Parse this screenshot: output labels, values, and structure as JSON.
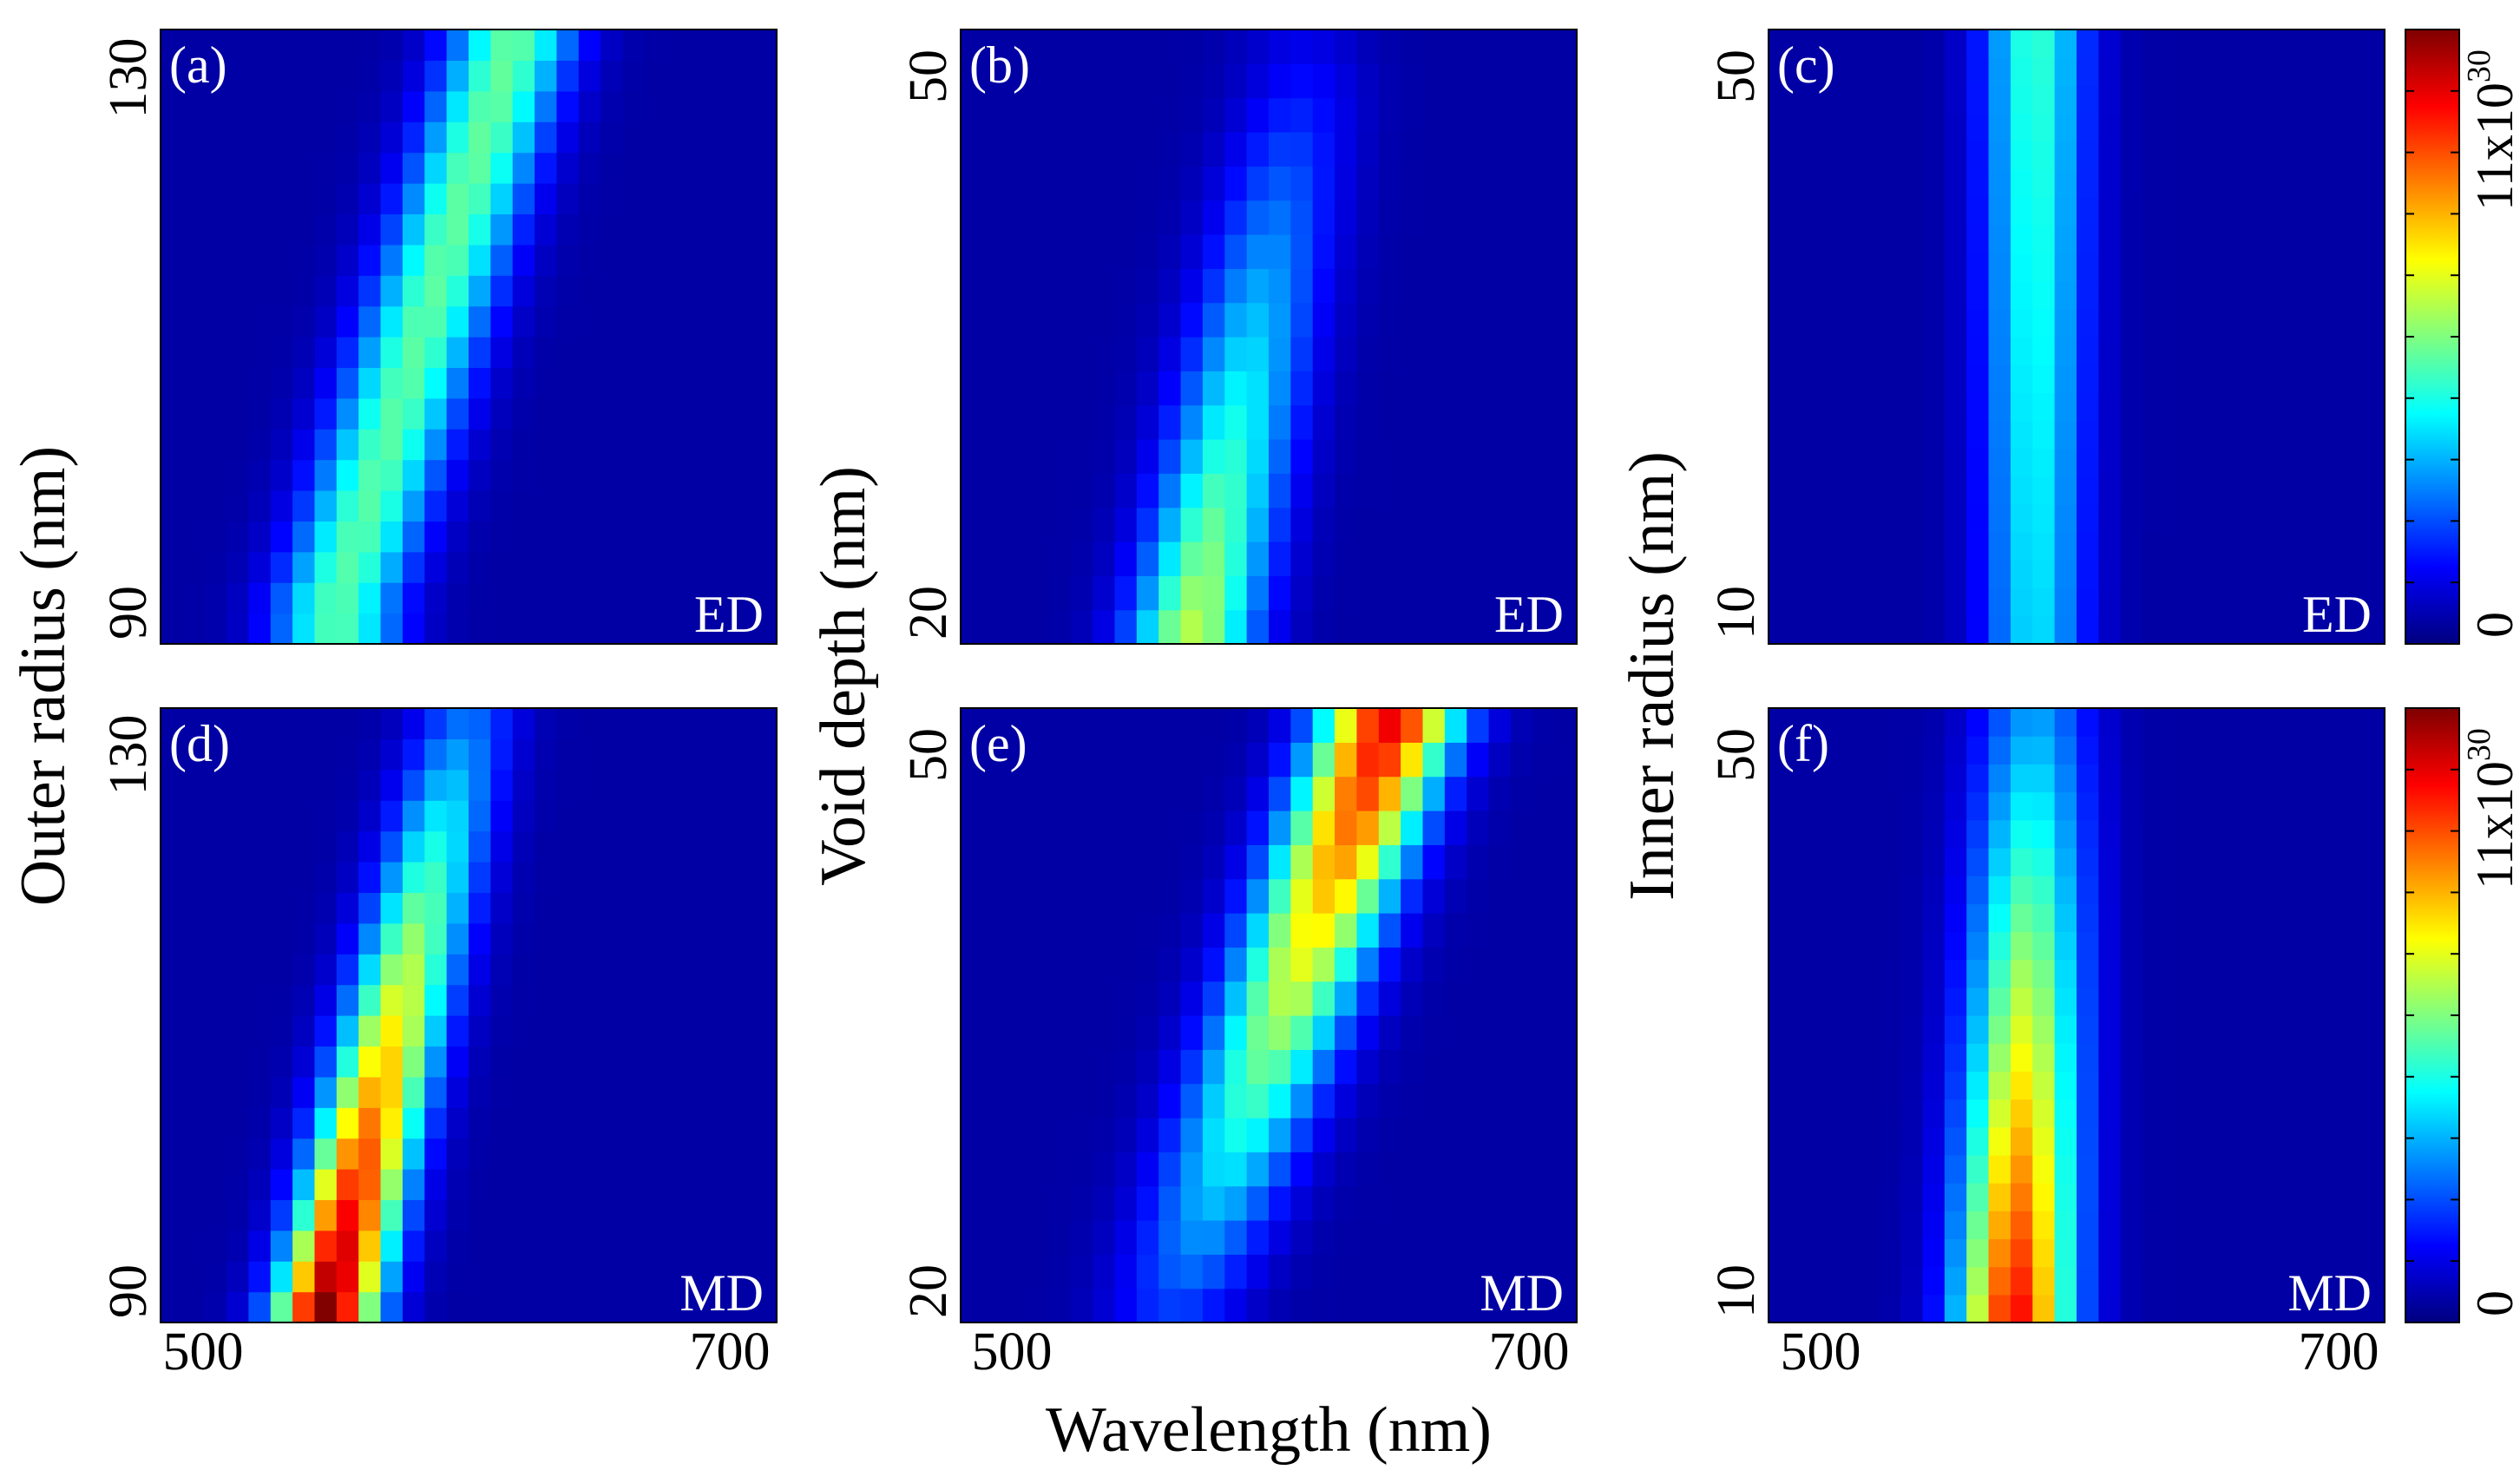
{
  "figure": {
    "x_axis_label": "Wavelength (nm)",
    "x_ticks": [
      "500",
      "700"
    ],
    "colorbar_top_label": "11x10",
    "colorbar_top_exponent": "30",
    "colorbar_bottom_label": "0",
    "colormap": "jet",
    "colormap_stops": [
      "#00007f",
      "#0000ff",
      "#00ffff",
      "#ffff00",
      "#ff0000",
      "#7f0000"
    ]
  },
  "chart_data": [
    {
      "type": "heatmap",
      "panel": "(a)",
      "mode": "ED",
      "ylabel": "Outer radius (nm)",
      "yticks": [
        "90",
        "130"
      ],
      "xlim": [
        490,
        710
      ],
      "ylim": [
        87,
        133
      ],
      "clim": [
        0,
        11
      ],
      "rows": 20,
      "cols": 28,
      "ridge": {
        "y_from": 90,
        "y_to": 133,
        "x_from": 553,
        "x_to": 617
      },
      "peak": 4.6,
      "peak_at_y_from": 4.6,
      "peak_at_y_to": 4.8,
      "sigma": 22
    },
    {
      "type": "heatmap",
      "panel": "(b)",
      "mode": "ED",
      "ylabel": "Void depth (nm)",
      "yticks": [
        "20",
        "50"
      ],
      "xlim": [
        490,
        710
      ],
      "ylim": [
        18,
        53
      ],
      "clim": [
        0,
        11
      ],
      "rows": 18,
      "cols": 28,
      "ridge": {
        "y_from": 18,
        "y_to": 50,
        "x_from": 572,
        "x_to": 612
      },
      "peak": 5.8,
      "peak_at_y_from": 5.8,
      "peak_at_y_to": 0.6,
      "sigma": 22
    },
    {
      "type": "heatmap",
      "panel": "(c)",
      "mode": "ED",
      "ylabel": "Inner radius (nm)",
      "yticks": [
        "10",
        "50"
      ],
      "xlim": [
        490,
        710
      ],
      "ylim": [
        8,
        53
      ],
      "clim": [
        0,
        11
      ],
      "rows": 22,
      "cols": 28,
      "ridge": {
        "y_from": 8,
        "y_to": 53,
        "x_from": 585,
        "x_to": 585
      },
      "peak": 4.6,
      "peak_at_y_from": 3.4,
      "peak_at_y_to": 4.3,
      "sigma": 18
    },
    {
      "type": "heatmap",
      "panel": "(d)",
      "mode": "MD",
      "ylabel": "Outer radius (nm)",
      "yticks": [
        "90",
        "130"
      ],
      "xlim": [
        490,
        710
      ],
      "ylim": [
        89,
        131
      ],
      "clim": [
        0,
        11
      ],
      "rows": 20,
      "cols": 28,
      "ridge": {
        "y_from": 89,
        "y_to": 131,
        "x_from": 548,
        "x_to": 600
      },
      "peak": 10.8,
      "peak_at_y_from": 10.8,
      "peak_at_y_to": 2.0,
      "sigma": 18
    },
    {
      "type": "heatmap",
      "panel": "(e)",
      "mode": "MD",
      "ylabel": "Void depth (nm)",
      "yticks": [
        "20",
        "50"
      ],
      "xlim": [
        490,
        710
      ],
      "ylim": [
        19,
        53
      ],
      "clim": [
        0,
        11
      ],
      "rows": 18,
      "cols": 28,
      "ridge": {
        "y_from": 19,
        "y_to": 53,
        "x_from": 565,
        "x_to": 645
      },
      "peak": 9.5,
      "peak_at_y_from": 1.4,
      "peak_at_y_to": 9.6,
      "sigma": 24
    },
    {
      "type": "heatmap",
      "panel": "(f)",
      "mode": "MD",
      "ylabel": "Inner radius (nm)",
      "yticks": [
        "10",
        "50"
      ],
      "xlim": [
        490,
        710
      ],
      "ylim": [
        9,
        53
      ],
      "clim": [
        0,
        11
      ],
      "rows": 22,
      "cols": 28,
      "ridge": {
        "y_from": 9,
        "y_to": 53,
        "x_from": 578,
        "x_to": 585
      },
      "peak": 9.5,
      "peak_at_y_from": 9.3,
      "peak_at_y_to": 2.6,
      "sigma": 20
    }
  ]
}
